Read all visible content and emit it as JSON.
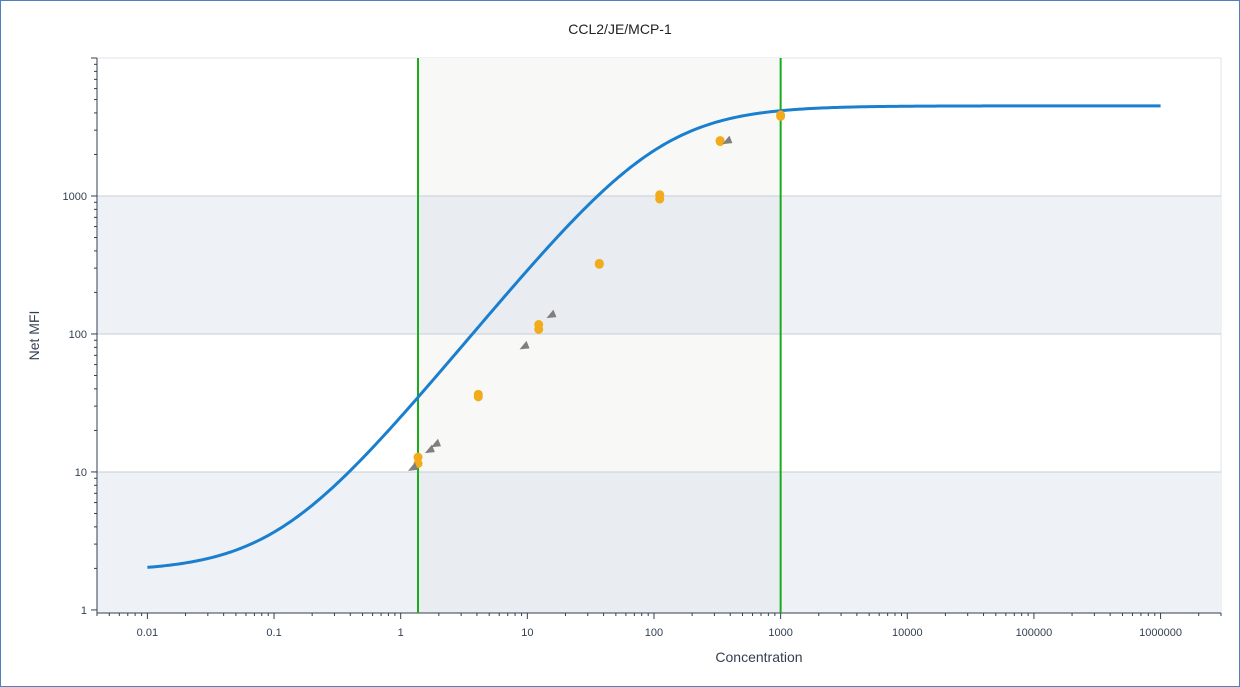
{
  "chart_data": {
    "type": "scatter",
    "title": "CCL2/JE/MCP-1",
    "xlabel": "Concentration",
    "ylabel": "Net MFI",
    "x_scale": "log",
    "y_scale": "log",
    "xlim": [
      0.004,
      3000000
    ],
    "ylim": [
      0.95,
      10000
    ],
    "x_ticks": [
      0.01,
      0.1,
      1,
      10,
      100,
      1000,
      10000,
      100000,
      1000000
    ],
    "x_tick_labels": [
      "0.01",
      "0.1",
      "1",
      "10",
      "100",
      "1000",
      "10000",
      "100000",
      "1000000"
    ],
    "y_ticks": [
      1,
      10,
      100,
      1000
    ],
    "y_tick_labels": [
      "1",
      "10",
      "100",
      "1000"
    ],
    "vertical_lines": [
      1.37,
      1000
    ],
    "shaded_x_range": [
      1.37,
      1000
    ],
    "fit_curve": {
      "name": "",
      "color": "#1a7fcf",
      "model": "4PL",
      "bottom": 1.9,
      "top": 4500,
      "ec50": 110,
      "hill": 1.12,
      "x_range": [
        0.01,
        1000000
      ]
    },
    "series": [
      {
        "name": "",
        "marker": "circle",
        "color": "#f2ab1b",
        "points": [
          [
            1.37,
            11.5
          ],
          [
            1.37,
            12.8
          ],
          [
            4.1,
            35
          ],
          [
            4.1,
            36.5
          ],
          [
            12.3,
            108
          ],
          [
            12.3,
            117
          ],
          [
            37,
            320
          ],
          [
            37,
            325
          ],
          [
            111,
            950
          ],
          [
            111,
            1020
          ],
          [
            333,
            2480
          ],
          [
            333,
            2520
          ],
          [
            1000,
            3780
          ],
          [
            1000,
            3870
          ]
        ]
      },
      {
        "name": "",
        "marker": "triangle",
        "color": "#7f7f7f",
        "points": [
          [
            1.25,
            10.8
          ],
          [
            1.7,
            14.5
          ],
          [
            1.9,
            16
          ],
          [
            9.5,
            82
          ],
          [
            15.5,
            138
          ],
          [
            380,
            2520
          ]
        ]
      }
    ],
    "colors": {
      "vertical_line": "#1aab1a",
      "band_light": "#f8f8f6",
      "band_shade": "#eef1f5",
      "grid": "#c8ced6",
      "axis": "#333f50"
    },
    "grid": true
  }
}
